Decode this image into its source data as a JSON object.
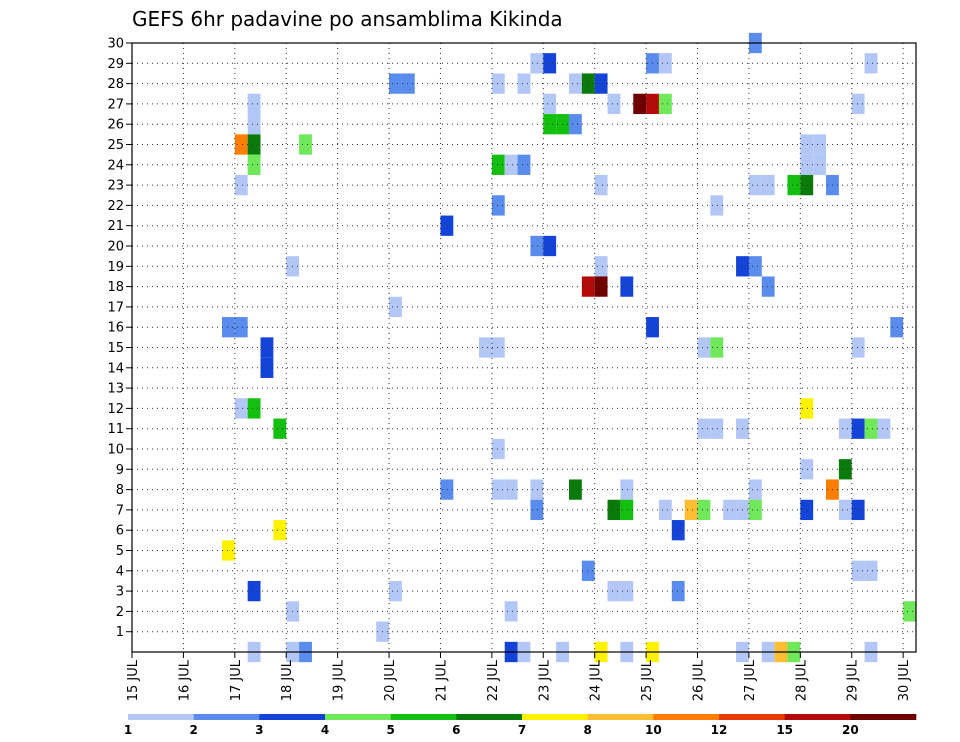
{
  "chart_data": {
    "type": "heatmap",
    "title": "GEFS 6hr padavine po ansamblima Kikinda",
    "xlabel": "",
    "ylabel": "",
    "x_tick_labels": [
      "15 JUL",
      "16 JUL",
      "17 JUL",
      "18 JUL",
      "19 JUL",
      "20 JUL",
      "21 JUL",
      "22 JUL",
      "23 JUL",
      "24 JUL",
      "25 JUL",
      "26 JUL",
      "27 JUL",
      "28 JUL",
      "29 JUL",
      "30 JUL"
    ],
    "y_tick_labels": [
      "1",
      "2",
      "3",
      "4",
      "5",
      "6",
      "7",
      "8",
      "9",
      "10",
      "11",
      "12",
      "13",
      "14",
      "15",
      "16",
      "17",
      "18",
      "19",
      "20",
      "21",
      "22",
      "23",
      "24",
      "25",
      "26",
      "27",
      "28",
      "29",
      "30"
    ],
    "xlim": [
      0,
      61
    ],
    "ylim": [
      0,
      30
    ],
    "grid": true,
    "legend_position": "bottom",
    "color_scale": {
      "labels": [
        "1",
        "2",
        "3",
        "4",
        "5",
        "6",
        "7",
        "8",
        "10",
        "12",
        "15",
        "20"
      ],
      "colors": [
        "#b3c7f7",
        "#5a8cee",
        "#1443d7",
        "#6fe85a",
        "#14c00f",
        "#0a7a0a",
        "#fff200",
        "#ffbe32",
        "#ff7d00",
        "#e63c00",
        "#b40a0a",
        "#6e0000"
      ]
    },
    "cells": [
      {
        "x": 48.5,
        "y": 30,
        "c": 1
      },
      {
        "x": 31.5,
        "y": 29,
        "c": 0
      },
      {
        "x": 32.5,
        "y": 29,
        "c": 2
      },
      {
        "x": 40.5,
        "y": 29,
        "c": 1
      },
      {
        "x": 41.5,
        "y": 29,
        "c": 0
      },
      {
        "x": 57.5,
        "y": 29,
        "c": 0
      },
      {
        "x": 20.5,
        "y": 28,
        "c": 1
      },
      {
        "x": 21.5,
        "y": 28,
        "c": 1
      },
      {
        "x": 28.5,
        "y": 28,
        "c": 0
      },
      {
        "x": 30.5,
        "y": 28,
        "c": 0
      },
      {
        "x": 34.5,
        "y": 28,
        "c": 0
      },
      {
        "x": 35.5,
        "y": 28,
        "c": 5
      },
      {
        "x": 36.5,
        "y": 28,
        "c": 2
      },
      {
        "x": 9.5,
        "y": 27,
        "c": 0
      },
      {
        "x": 32.5,
        "y": 27,
        "c": 0
      },
      {
        "x": 37.5,
        "y": 27,
        "c": 0
      },
      {
        "x": 39.5,
        "y": 27,
        "c": 11
      },
      {
        "x": 40.5,
        "y": 27,
        "c": 10
      },
      {
        "x": 41.5,
        "y": 27,
        "c": 3
      },
      {
        "x": 56.5,
        "y": 27,
        "c": 0
      },
      {
        "x": 9.5,
        "y": 26,
        "c": 0
      },
      {
        "x": 32.5,
        "y": 26,
        "c": 4
      },
      {
        "x": 33.5,
        "y": 26,
        "c": 4
      },
      {
        "x": 34.5,
        "y": 26,
        "c": 1
      },
      {
        "x": 8.5,
        "y": 25,
        "c": 8
      },
      {
        "x": 9.5,
        "y": 25,
        "c": 5
      },
      {
        "x": 13.5,
        "y": 25,
        "c": 3
      },
      {
        "x": 52.5,
        "y": 25,
        "c": 0
      },
      {
        "x": 53.5,
        "y": 25,
        "c": 0
      },
      {
        "x": 9.5,
        "y": 24,
        "c": 3
      },
      {
        "x": 28.5,
        "y": 24,
        "c": 4
      },
      {
        "x": 29.5,
        "y": 24,
        "c": 0
      },
      {
        "x": 30.5,
        "y": 24,
        "c": 1
      },
      {
        "x": 52.5,
        "y": 24,
        "c": 0
      },
      {
        "x": 53.5,
        "y": 24,
        "c": 0
      },
      {
        "x": 8.5,
        "y": 23,
        "c": 0
      },
      {
        "x": 36.5,
        "y": 23,
        "c": 0
      },
      {
        "x": 48.5,
        "y": 23,
        "c": 0
      },
      {
        "x": 49.5,
        "y": 23,
        "c": 0
      },
      {
        "x": 51.5,
        "y": 23,
        "c": 4
      },
      {
        "x": 52.5,
        "y": 23,
        "c": 5
      },
      {
        "x": 54.5,
        "y": 23,
        "c": 1
      },
      {
        "x": 28.5,
        "y": 22,
        "c": 1
      },
      {
        "x": 45.5,
        "y": 22,
        "c": 0
      },
      {
        "x": 24.5,
        "y": 21,
        "c": 2
      },
      {
        "x": 31.5,
        "y": 20,
        "c": 1
      },
      {
        "x": 32.5,
        "y": 20,
        "c": 2
      },
      {
        "x": 12.5,
        "y": 19,
        "c": 0
      },
      {
        "x": 36.5,
        "y": 19,
        "c": 0
      },
      {
        "x": 47.5,
        "y": 19,
        "c": 2
      },
      {
        "x": 48.5,
        "y": 19,
        "c": 1
      },
      {
        "x": 35.5,
        "y": 18,
        "c": 10
      },
      {
        "x": 36.5,
        "y": 18,
        "c": 11
      },
      {
        "x": 38.5,
        "y": 18,
        "c": 2
      },
      {
        "x": 49.5,
        "y": 18,
        "c": 1
      },
      {
        "x": 20.5,
        "y": 17,
        "c": 0
      },
      {
        "x": 7.5,
        "y": 16,
        "c": 1
      },
      {
        "x": 8.5,
        "y": 16,
        "c": 1
      },
      {
        "x": 40.5,
        "y": 16,
        "c": 2
      },
      {
        "x": 59.5,
        "y": 16,
        "c": 1
      },
      {
        "x": 10.5,
        "y": 15,
        "c": 2
      },
      {
        "x": 27.5,
        "y": 15,
        "c": 0
      },
      {
        "x": 28.5,
        "y": 15,
        "c": 0
      },
      {
        "x": 44.5,
        "y": 15,
        "c": 0
      },
      {
        "x": 45.5,
        "y": 15,
        "c": 3
      },
      {
        "x": 56.5,
        "y": 15,
        "c": 0
      },
      {
        "x": 10.5,
        "y": 14,
        "c": 2
      },
      {
        "x": 8.5,
        "y": 12,
        "c": 0
      },
      {
        "x": 9.5,
        "y": 12,
        "c": 4
      },
      {
        "x": 52.5,
        "y": 12,
        "c": 6
      },
      {
        "x": 11.5,
        "y": 11,
        "c": 4
      },
      {
        "x": 44.5,
        "y": 11,
        "c": 0
      },
      {
        "x": 45.5,
        "y": 11,
        "c": 0
      },
      {
        "x": 47.5,
        "y": 11,
        "c": 0
      },
      {
        "x": 55.5,
        "y": 11,
        "c": 0
      },
      {
        "x": 56.5,
        "y": 11,
        "c": 2
      },
      {
        "x": 57.5,
        "y": 11,
        "c": 3
      },
      {
        "x": 58.5,
        "y": 11,
        "c": 0
      },
      {
        "x": 28.5,
        "y": 10,
        "c": 0
      },
      {
        "x": 52.5,
        "y": 9,
        "c": 0
      },
      {
        "x": 55.5,
        "y": 9,
        "c": 5
      },
      {
        "x": 24.5,
        "y": 8,
        "c": 1
      },
      {
        "x": 28.5,
        "y": 8,
        "c": 0
      },
      {
        "x": 29.5,
        "y": 8,
        "c": 0
      },
      {
        "x": 31.5,
        "y": 8,
        "c": 0
      },
      {
        "x": 34.5,
        "y": 8,
        "c": 5
      },
      {
        "x": 38.5,
        "y": 8,
        "c": 0
      },
      {
        "x": 48.5,
        "y": 8,
        "c": 0
      },
      {
        "x": 54.5,
        "y": 8,
        "c": 8
      },
      {
        "x": 31.5,
        "y": 7,
        "c": 1
      },
      {
        "x": 37.5,
        "y": 7,
        "c": 5
      },
      {
        "x": 38.5,
        "y": 7,
        "c": 4
      },
      {
        "x": 41.5,
        "y": 7,
        "c": 0
      },
      {
        "x": 43.5,
        "y": 7,
        "c": 7
      },
      {
        "x": 44.5,
        "y": 7,
        "c": 3
      },
      {
        "x": 46.5,
        "y": 7,
        "c": 0
      },
      {
        "x": 47.5,
        "y": 7,
        "c": 0
      },
      {
        "x": 48.5,
        "y": 7,
        "c": 3
      },
      {
        "x": 52.5,
        "y": 7,
        "c": 2
      },
      {
        "x": 55.5,
        "y": 7,
        "c": 0
      },
      {
        "x": 56.5,
        "y": 7,
        "c": 2
      },
      {
        "x": 42.5,
        "y": 6,
        "c": 2
      },
      {
        "x": 11.5,
        "y": 6,
        "c": 6
      },
      {
        "x": 7.5,
        "y": 5,
        "c": 6
      },
      {
        "x": 35.5,
        "y": 4,
        "c": 1
      },
      {
        "x": 56.5,
        "y": 4,
        "c": 0
      },
      {
        "x": 57.5,
        "y": 4,
        "c": 0
      },
      {
        "x": 9.5,
        "y": 3,
        "c": 2
      },
      {
        "x": 20.5,
        "y": 3,
        "c": 0
      },
      {
        "x": 37.5,
        "y": 3,
        "c": 0
      },
      {
        "x": 38.5,
        "y": 3,
        "c": 0
      },
      {
        "x": 42.5,
        "y": 3,
        "c": 1
      },
      {
        "x": 12.5,
        "y": 2,
        "c": 0
      },
      {
        "x": 29.5,
        "y": 2,
        "c": 0
      },
      {
        "x": 60.5,
        "y": 2,
        "c": 3
      },
      {
        "x": 19.5,
        "y": 1,
        "c": 0
      },
      {
        "x": 9.5,
        "y": 0,
        "c": 0
      },
      {
        "x": 12.5,
        "y": 0,
        "c": 0
      },
      {
        "x": 13.5,
        "y": 0,
        "c": 1
      },
      {
        "x": 29.5,
        "y": 0,
        "c": 2
      },
      {
        "x": 30.5,
        "y": 0,
        "c": 0
      },
      {
        "x": 33.5,
        "y": 0,
        "c": 0
      },
      {
        "x": 36.5,
        "y": 0,
        "c": 6
      },
      {
        "x": 38.5,
        "y": 0,
        "c": 0
      },
      {
        "x": 40.5,
        "y": 0,
        "c": 6
      },
      {
        "x": 47.5,
        "y": 0,
        "c": 0
      },
      {
        "x": 49.5,
        "y": 0,
        "c": 0
      },
      {
        "x": 50.5,
        "y": 0,
        "c": 7
      },
      {
        "x": 51.5,
        "y": 0,
        "c": 3
      },
      {
        "x": 57.5,
        "y": 0,
        "c": 0
      }
    ]
  }
}
